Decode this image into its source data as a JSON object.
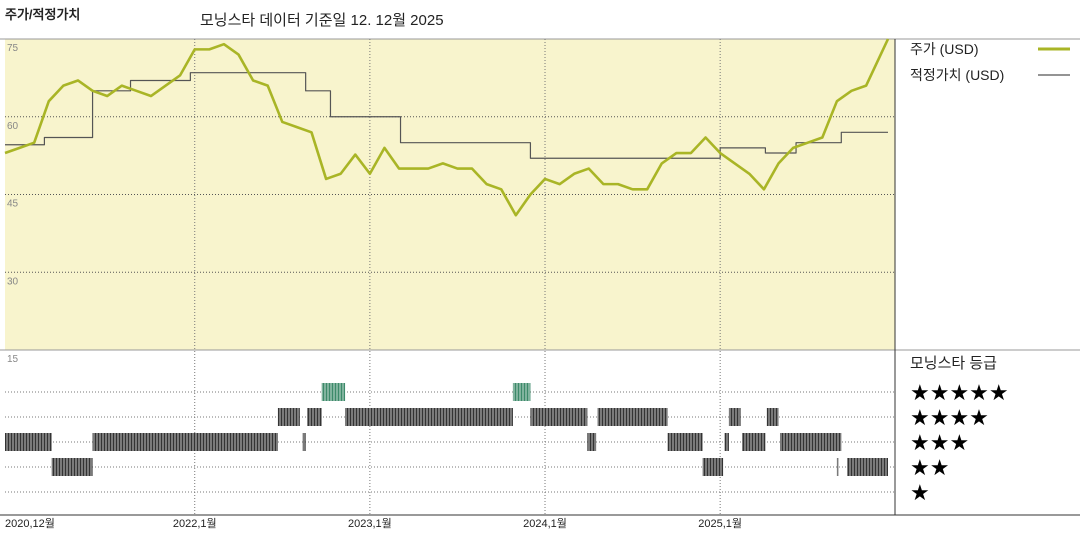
{
  "chart_data": {
    "type": "line",
    "title": "주가/적정가치",
    "subtitle": "모닝스타 데이터 기준일 12. 12월 2025",
    "ylim": [
      15,
      75
    ],
    "yticks": [
      15,
      30,
      45,
      60,
      75
    ],
    "xlim": [
      0,
      60.5
    ],
    "xticks": [
      {
        "value": 0,
        "label": "2020,12월"
      },
      {
        "value": 13,
        "label": "2022,1월"
      },
      {
        "value": 25,
        "label": "2023,1월"
      },
      {
        "value": 37,
        "label": "2024,1월"
      },
      {
        "value": 49,
        "label": "2025,1월"
      }
    ],
    "grid": true,
    "series": [
      {
        "name": "주가 (USD)",
        "color": "#a9b526",
        "x": [
          0,
          1,
          2,
          3,
          4,
          5,
          6,
          7,
          8,
          9,
          10,
          11,
          12,
          13,
          14,
          15,
          16,
          17,
          18,
          19,
          20,
          21,
          22,
          23,
          24,
          25,
          26,
          27,
          28,
          29,
          30,
          31,
          32,
          33,
          34,
          35,
          36,
          37,
          38,
          39,
          40,
          41,
          42,
          43,
          44,
          45,
          46,
          47,
          48,
          49,
          50,
          51,
          52,
          53,
          54,
          55,
          56,
          57,
          58,
          59,
          60,
          60.5
        ],
        "values": [
          53,
          54,
          55,
          63,
          66,
          67,
          65,
          64,
          66,
          65,
          64,
          66,
          68,
          73,
          73,
          74,
          72,
          67,
          66,
          59,
          58,
          57,
          48,
          49,
          52.7,
          49,
          54,
          50,
          50,
          50,
          51,
          50,
          50,
          47,
          46,
          41,
          45,
          48,
          47,
          49,
          50,
          47,
          47,
          46,
          46,
          51,
          53,
          53,
          56,
          53,
          51,
          49,
          46,
          51,
          54,
          55,
          56,
          63,
          65,
          66,
          72,
          75
        ]
      },
      {
        "name": "적정가치 (USD)",
        "color": "#555555",
        "step": true,
        "x": [
          0,
          2.7,
          6,
          8.6,
          12.7,
          20.6,
          22.3,
          27.1,
          36,
          49,
          52.1,
          54.2,
          57.3,
          60.5
        ],
        "values": [
          54.6,
          56,
          65,
          67,
          68.5,
          65,
          60,
          55,
          52,
          54,
          53,
          55,
          57,
          57
        ]
      }
    ],
    "rating_title": "모닝스타 등급",
    "rating_levels": [
      {
        "stars": 5,
        "label": "★★★★★",
        "color": "#3d8a6a"
      },
      {
        "stars": 4,
        "label": "★★★★",
        "color": "#333333"
      },
      {
        "stars": 3,
        "label": "★★★",
        "color": "#333333"
      },
      {
        "stars": 2,
        "label": "★★",
        "color": "#333333"
      },
      {
        "stars": 1,
        "label": "★",
        "color": "#333333"
      }
    ],
    "rating_segments": [
      {
        "rating": 3,
        "start": 0,
        "end": 3.2
      },
      {
        "rating": 2,
        "start": 3.2,
        "end": 6
      },
      {
        "rating": 3,
        "start": 6,
        "end": 18.7
      },
      {
        "rating": 4,
        "start": 18.7,
        "end": 20.2
      },
      {
        "rating": 3,
        "start": 20.4,
        "end": 20.6
      },
      {
        "rating": 4,
        "start": 20.7,
        "end": 21.7
      },
      {
        "rating": 5,
        "start": 21.7,
        "end": 23.3
      },
      {
        "rating": 4,
        "start": 23.3,
        "end": 34.8
      },
      {
        "rating": 5,
        "start": 34.8,
        "end": 36
      },
      {
        "rating": 4,
        "start": 36,
        "end": 39.9
      },
      {
        "rating": 3,
        "start": 39.9,
        "end": 40.5
      },
      {
        "rating": 4,
        "start": 40.6,
        "end": 45.4
      },
      {
        "rating": 3,
        "start": 45.4,
        "end": 47.8
      },
      {
        "rating": 2,
        "start": 47.8,
        "end": 49.2
      },
      {
        "rating": 3,
        "start": 49.3,
        "end": 49.6
      },
      {
        "rating": 4,
        "start": 49.6,
        "end": 50.4
      },
      {
        "rating": 3,
        "start": 50.5,
        "end": 52.1
      },
      {
        "rating": 4,
        "start": 52.2,
        "end": 53
      },
      {
        "rating": 3,
        "start": 53.1,
        "end": 57.3
      },
      {
        "rating": 2,
        "start": 57.0,
        "end": 57.1
      },
      {
        "rating": 2,
        "start": 57.7,
        "end": 60.5
      }
    ]
  }
}
